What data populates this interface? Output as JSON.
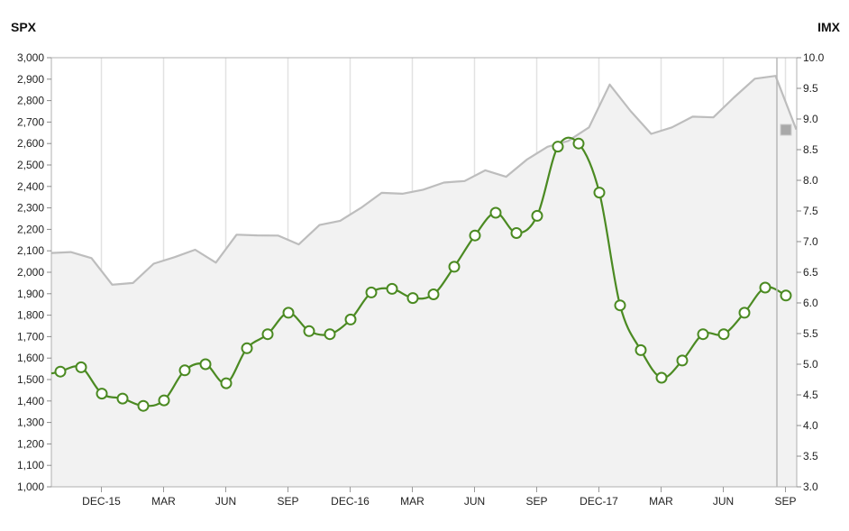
{
  "chart_data": {
    "type": "line",
    "left_axis_title": "SPX",
    "right_axis_title": "IMX",
    "left_ticks": [
      "1,000",
      "1,100",
      "1,200",
      "1,300",
      "1,400",
      "1,500",
      "1,600",
      "1,700",
      "1,800",
      "1,900",
      "2,000",
      "2,100",
      "2,200",
      "2,300",
      "2,400",
      "2,500",
      "2,600",
      "2,700",
      "2,800",
      "2,900",
      "3,000"
    ],
    "right_ticks": [
      "3.0",
      "3.5",
      "4.0",
      "4.5",
      "5.0",
      "5.5",
      "6.0",
      "6.5",
      "7.0",
      "7.5",
      "8.0",
      "8.5",
      "9.0",
      "9.5",
      "10.0"
    ],
    "left_range": [
      1000,
      3000
    ],
    "right_range": [
      3.0,
      10.0
    ],
    "x_labels": [
      {
        "label": "DEC-15",
        "index": 2
      },
      {
        "label": "MAR",
        "index": 5
      },
      {
        "label": "JUN",
        "index": 8
      },
      {
        "label": "SEP",
        "index": 11
      },
      {
        "label": "DEC-16",
        "index": 14
      },
      {
        "label": "MAR",
        "index": 17
      },
      {
        "label": "JUN",
        "index": 20
      },
      {
        "label": "SEP",
        "index": 23
      },
      {
        "label": "DEC-17",
        "index": 26
      },
      {
        "label": "MAR",
        "index": 29
      },
      {
        "label": "JUN",
        "index": 32
      },
      {
        "label": "SEP",
        "index": 35
      }
    ],
    "spx": [
      2090,
      2094,
      2066,
      1942,
      1950,
      2040,
      2070,
      2105,
      2045,
      2175,
      2172,
      2171,
      2130,
      2220,
      2240,
      2300,
      2370,
      2366,
      2385,
      2418,
      2425,
      2475,
      2445,
      2525,
      2585,
      2612,
      2675,
      2875,
      2752,
      2645,
      2675,
      2725,
      2722,
      2815,
      2902,
      2915,
      2665
    ],
    "imx": [
      4.88,
      4.95,
      4.52,
      4.44,
      4.32,
      4.41,
      4.9,
      5.0,
      4.69,
      5.26,
      5.49,
      5.84,
      5.54,
      5.49,
      5.73,
      6.17,
      6.23,
      6.08,
      6.14,
      6.59,
      7.1,
      7.47,
      7.14,
      7.42,
      8.55,
      8.6,
      7.8,
      5.96,
      5.23,
      4.78,
      5.06,
      5.49,
      5.49,
      5.84,
      6.25,
      6.12
    ],
    "colors": {
      "spx_line": "#bdbdbd",
      "spx_fill": "#f2f2f2",
      "imx_line": "#4b8a22",
      "marker_fill": "#ffffff",
      "frame": "#b0b0b0",
      "grid": "#e2e2e2",
      "cursor": "#b8b8b8",
      "cursor_marker": "#a9a9a9"
    },
    "grid": true,
    "legend": "none"
  }
}
